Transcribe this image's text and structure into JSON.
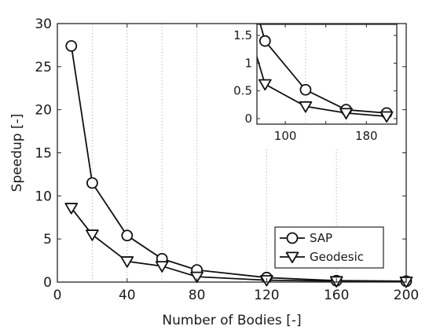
{
  "chart_data": {
    "type": "line",
    "title": "",
    "xlabel": "Number of Bodies [-]",
    "ylabel": "Speedup [-]",
    "xlim": [
      0,
      200
    ],
    "ylim": [
      0,
      30
    ],
    "xticks": [
      0,
      40,
      80,
      120,
      160,
      200
    ],
    "yticks": [
      0,
      5,
      10,
      15,
      20,
      25,
      30
    ],
    "x_gridlines": [
      20,
      40,
      60,
      80,
      120,
      160
    ],
    "grid": "x-dotted",
    "legend": "bottom-right",
    "series": [
      {
        "name": "SAP",
        "marker": "circle",
        "x": [
          8,
          20,
          40,
          60,
          80,
          120,
          160,
          200
        ],
        "y": [
          27.4,
          11.5,
          5.4,
          2.7,
          1.4,
          0.52,
          0.16,
          0.1
        ]
      },
      {
        "name": "Geodesic",
        "marker": "triangle-down",
        "x": [
          8,
          20,
          40,
          60,
          80,
          120,
          160,
          200
        ],
        "y": [
          8.6,
          5.5,
          2.4,
          1.85,
          0.62,
          0.22,
          0.1,
          0.04
        ]
      }
    ],
    "inset": {
      "xlim": [
        72,
        210
      ],
      "ylim": [
        -0.1,
        1.7
      ],
      "xticks": [
        100,
        140,
        180
      ],
      "xtick_labels": [
        "100",
        "",
        "180"
      ],
      "yticks": [
        0,
        0.5,
        1,
        1.5
      ],
      "ytick_labels": [
        "0",
        "0.5",
        "1",
        "1.5"
      ],
      "x_gridlines": [
        120,
        160
      ]
    }
  }
}
